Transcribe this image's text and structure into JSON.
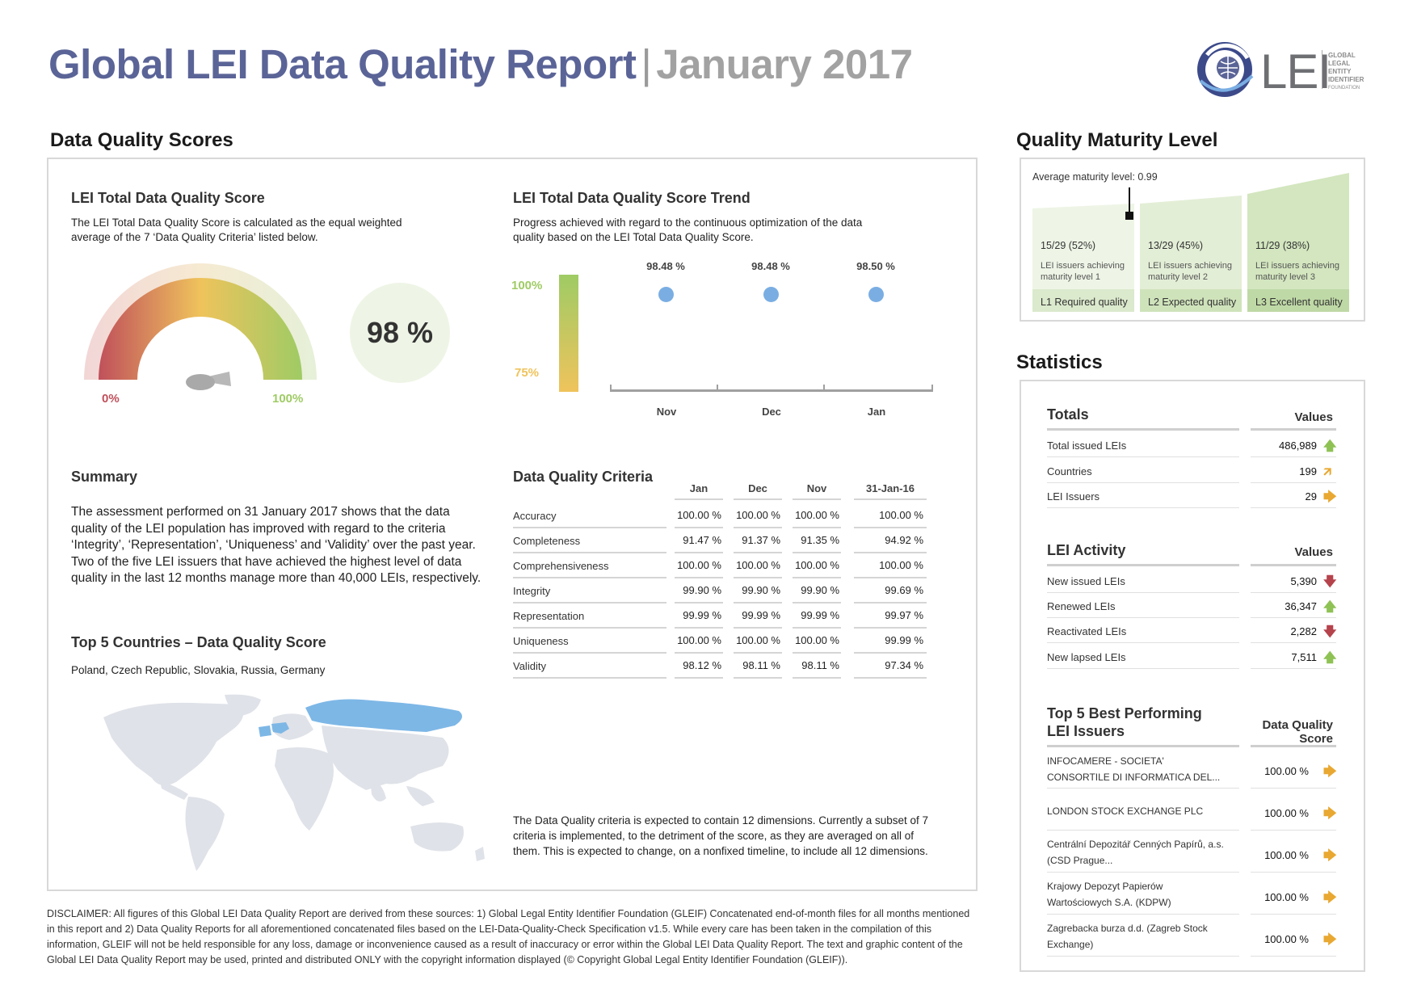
{
  "header": {
    "title": "Global LEI Data Quality Report",
    "separator": "|",
    "date": "January 2017",
    "logo_word": "LEI",
    "logo_small": [
      "GLOBAL",
      "LEGAL",
      "ENTITY",
      "IDENTIFIER",
      "FOUNDATION"
    ]
  },
  "dqs": {
    "section_title": "Data Quality Scores",
    "total": {
      "title": "LEI Total Data Quality Score",
      "desc_line1": "The LEI Total Data Quality Score is calculated as the equal weighted",
      "desc_line2": "average of the 7 ‘Data Quality Criteria’ listed below.",
      "score": "98 %",
      "gauge_min": "0%",
      "gauge_max": "100%",
      "gauge_value": 98
    },
    "trend": {
      "title": "LEI Total Data Quality Score Trend",
      "desc_line1": "Progress achieved with regard to the continuous optimization of the data",
      "desc_line2": "quality based on the LEI Total Data Quality Score.",
      "scale_top": "100%",
      "scale_bottom": "75%",
      "points": [
        {
          "month": "Nov",
          "value_label": "98.48 %",
          "value": 98.48
        },
        {
          "month": "Dec",
          "value_label": "98.48 %",
          "value": 98.48
        },
        {
          "month": "Jan",
          "value_label": "98.50 %",
          "value": 98.5
        }
      ]
    },
    "summary": {
      "title": "Summary",
      "lines": [
        "The assessment performed on 31 January 2017 shows that the data",
        "quality of the LEI population has improved with regard to the criteria",
        "‘Integrity’, ‘Representation’, ‘Uniqueness’ and ‘Validity’ over the past year.",
        "Two of the five LEI issuers that have achieved the highest level of data",
        "quality in the last 12 months manage more than 40,000 LEIs, respectively."
      ]
    },
    "criteria": {
      "title": "Data Quality Criteria",
      "columns": [
        "Jan",
        "Dec",
        "Nov",
        "31-Jan-16"
      ],
      "rows": [
        {
          "label": "Accuracy",
          "values": [
            "100.00 %",
            "100.00 %",
            "100.00 %",
            "100.00 %"
          ]
        },
        {
          "label": "Completeness",
          "values": [
            "91.47 %",
            "91.37 %",
            "91.35 %",
            "94.92 %"
          ]
        },
        {
          "label": "Comprehensiveness",
          "values": [
            "100.00 %",
            "100.00 %",
            "100.00 %",
            "100.00 %"
          ]
        },
        {
          "label": "Integrity",
          "values": [
            "99.90 %",
            "99.90 %",
            "99.90 %",
            "99.69 %"
          ]
        },
        {
          "label": "Representation",
          "values": [
            "99.99 %",
            "99.99 %",
            "99.99 %",
            "99.97 %"
          ]
        },
        {
          "label": "Uniqueness",
          "values": [
            "100.00 %",
            "100.00 %",
            "100.00 %",
            "99.99 %"
          ]
        },
        {
          "label": "Validity",
          "values": [
            "98.12 %",
            "98.11 %",
            "98.11 %",
            "97.34 %"
          ]
        }
      ],
      "note_lines": [
        "The Data Quality criteria is expected to contain 12 dimensions. Currently a subset of 7",
        "criteria is implemented, to the detriment of the score, as they are averaged on all of",
        "them. This is expected to change, on a nonfixed timeline, to include all 12 dimensions."
      ]
    },
    "top5": {
      "title": "Top 5 Countries – Data Quality Score",
      "countries": "Poland, Czech Republic, Slovakia, Russia, Germany"
    }
  },
  "maturity": {
    "section_title": "Quality Maturity Level",
    "average": "Average maturity level: 0.99",
    "levels": [
      {
        "count": "15/29 (52%)",
        "desc1": "LEI issuers achieving",
        "desc2": "maturity level 1",
        "label": "L1 Required quality"
      },
      {
        "count": "13/29 (45%)",
        "desc1": "LEI issuers achieving",
        "desc2": "maturity level 2",
        "label": "L2 Expected quality"
      },
      {
        "count": "11/29 (38%)",
        "desc1": "LEI issuers achieving",
        "desc2": "maturity level 3",
        "label": "L3 Excellent quality"
      }
    ]
  },
  "statistics": {
    "section_title": "Statistics",
    "totals": {
      "head": "Totals",
      "values_head": "Values",
      "rows": [
        {
          "label": "Total issued LEIs",
          "value": "486,989",
          "arrow": "up"
        },
        {
          "label": "Countries",
          "value": "199",
          "arrow": "up-right"
        },
        {
          "label": "LEI Issuers",
          "value": "29",
          "arrow": "right"
        }
      ]
    },
    "activity": {
      "head": "LEI Activity",
      "values_head": "Values",
      "rows": [
        {
          "label": "New issued LEIs",
          "value": "5,390",
          "arrow": "down"
        },
        {
          "label": "Renewed LEIs",
          "value": "36,347",
          "arrow": "up"
        },
        {
          "label": "Reactivated LEIs",
          "value": "2,282",
          "arrow": "down"
        },
        {
          "label": "New lapsed LEIs",
          "value": "7,511",
          "arrow": "up"
        }
      ]
    },
    "issuers": {
      "head1": "Top 5 Best Performing",
      "head2": "LEI Issuers",
      "score_head1": "Data Quality",
      "score_head2": "Score",
      "rows": [
        {
          "line1": "INFOCAMERE - SOCIETA'",
          "line2": "CONSORTILE DI INFORMATICA DEL...",
          "value": "100.00 %"
        },
        {
          "line1": "LONDON STOCK EXCHANGE PLC",
          "line2": "",
          "value": "100.00 %"
        },
        {
          "line1": "Centrální Depozitář Cenných Papírů, a.s.",
          "line2": "(CSD Prague...",
          "value": "100.00 %"
        },
        {
          "line1": "Krajowy Depozyt Papierów",
          "line2": "Wartościowych S.A. (KDPW)",
          "value": "100.00 %"
        },
        {
          "line1": "Zagrebacka burza d.d. (Zagreb Stock",
          "line2": "Exchange)",
          "value": "100.00 %"
        }
      ]
    }
  },
  "disclaimer": "DISCLAIMER: All figures of this Global LEI Data Quality Report are derived from these sources: 1) Global Legal Entity Identifier Foundation (GLEIF) Concatenated end-of-month files for all months mentioned in this report and 2) Data Quality Reports for all aforementioned concatenated files based on the LEI-Data-Quality-Check Specification v1.5. While every care has been taken in the compilation of this information, GLEIF will not be held responsible for any loss, damage or inconvenience caused as a result of inaccuracy or error within the Global LEI Data Quality Report. The text and graphic content of the Global LEI Data Quality Report may be used, printed and distributed ONLY with the copyright information displayed (© Copyright Global Legal Entity Identifier Foundation (GLEIF)).",
  "colors": {
    "title": "#5b6497",
    "date": "#a2a2a2",
    "gauge_red": "#c0505b",
    "gauge_yellow": "#efc35c",
    "gauge_green": "#9fcb65",
    "trend_dot": "#7aaee3",
    "arrow_green": "#8fc255",
    "arrow_orange": "#e8a832",
    "arrow_red": "#b5434c",
    "map_highlight": "#7db7e6",
    "map_base": "#dfe2e8"
  }
}
